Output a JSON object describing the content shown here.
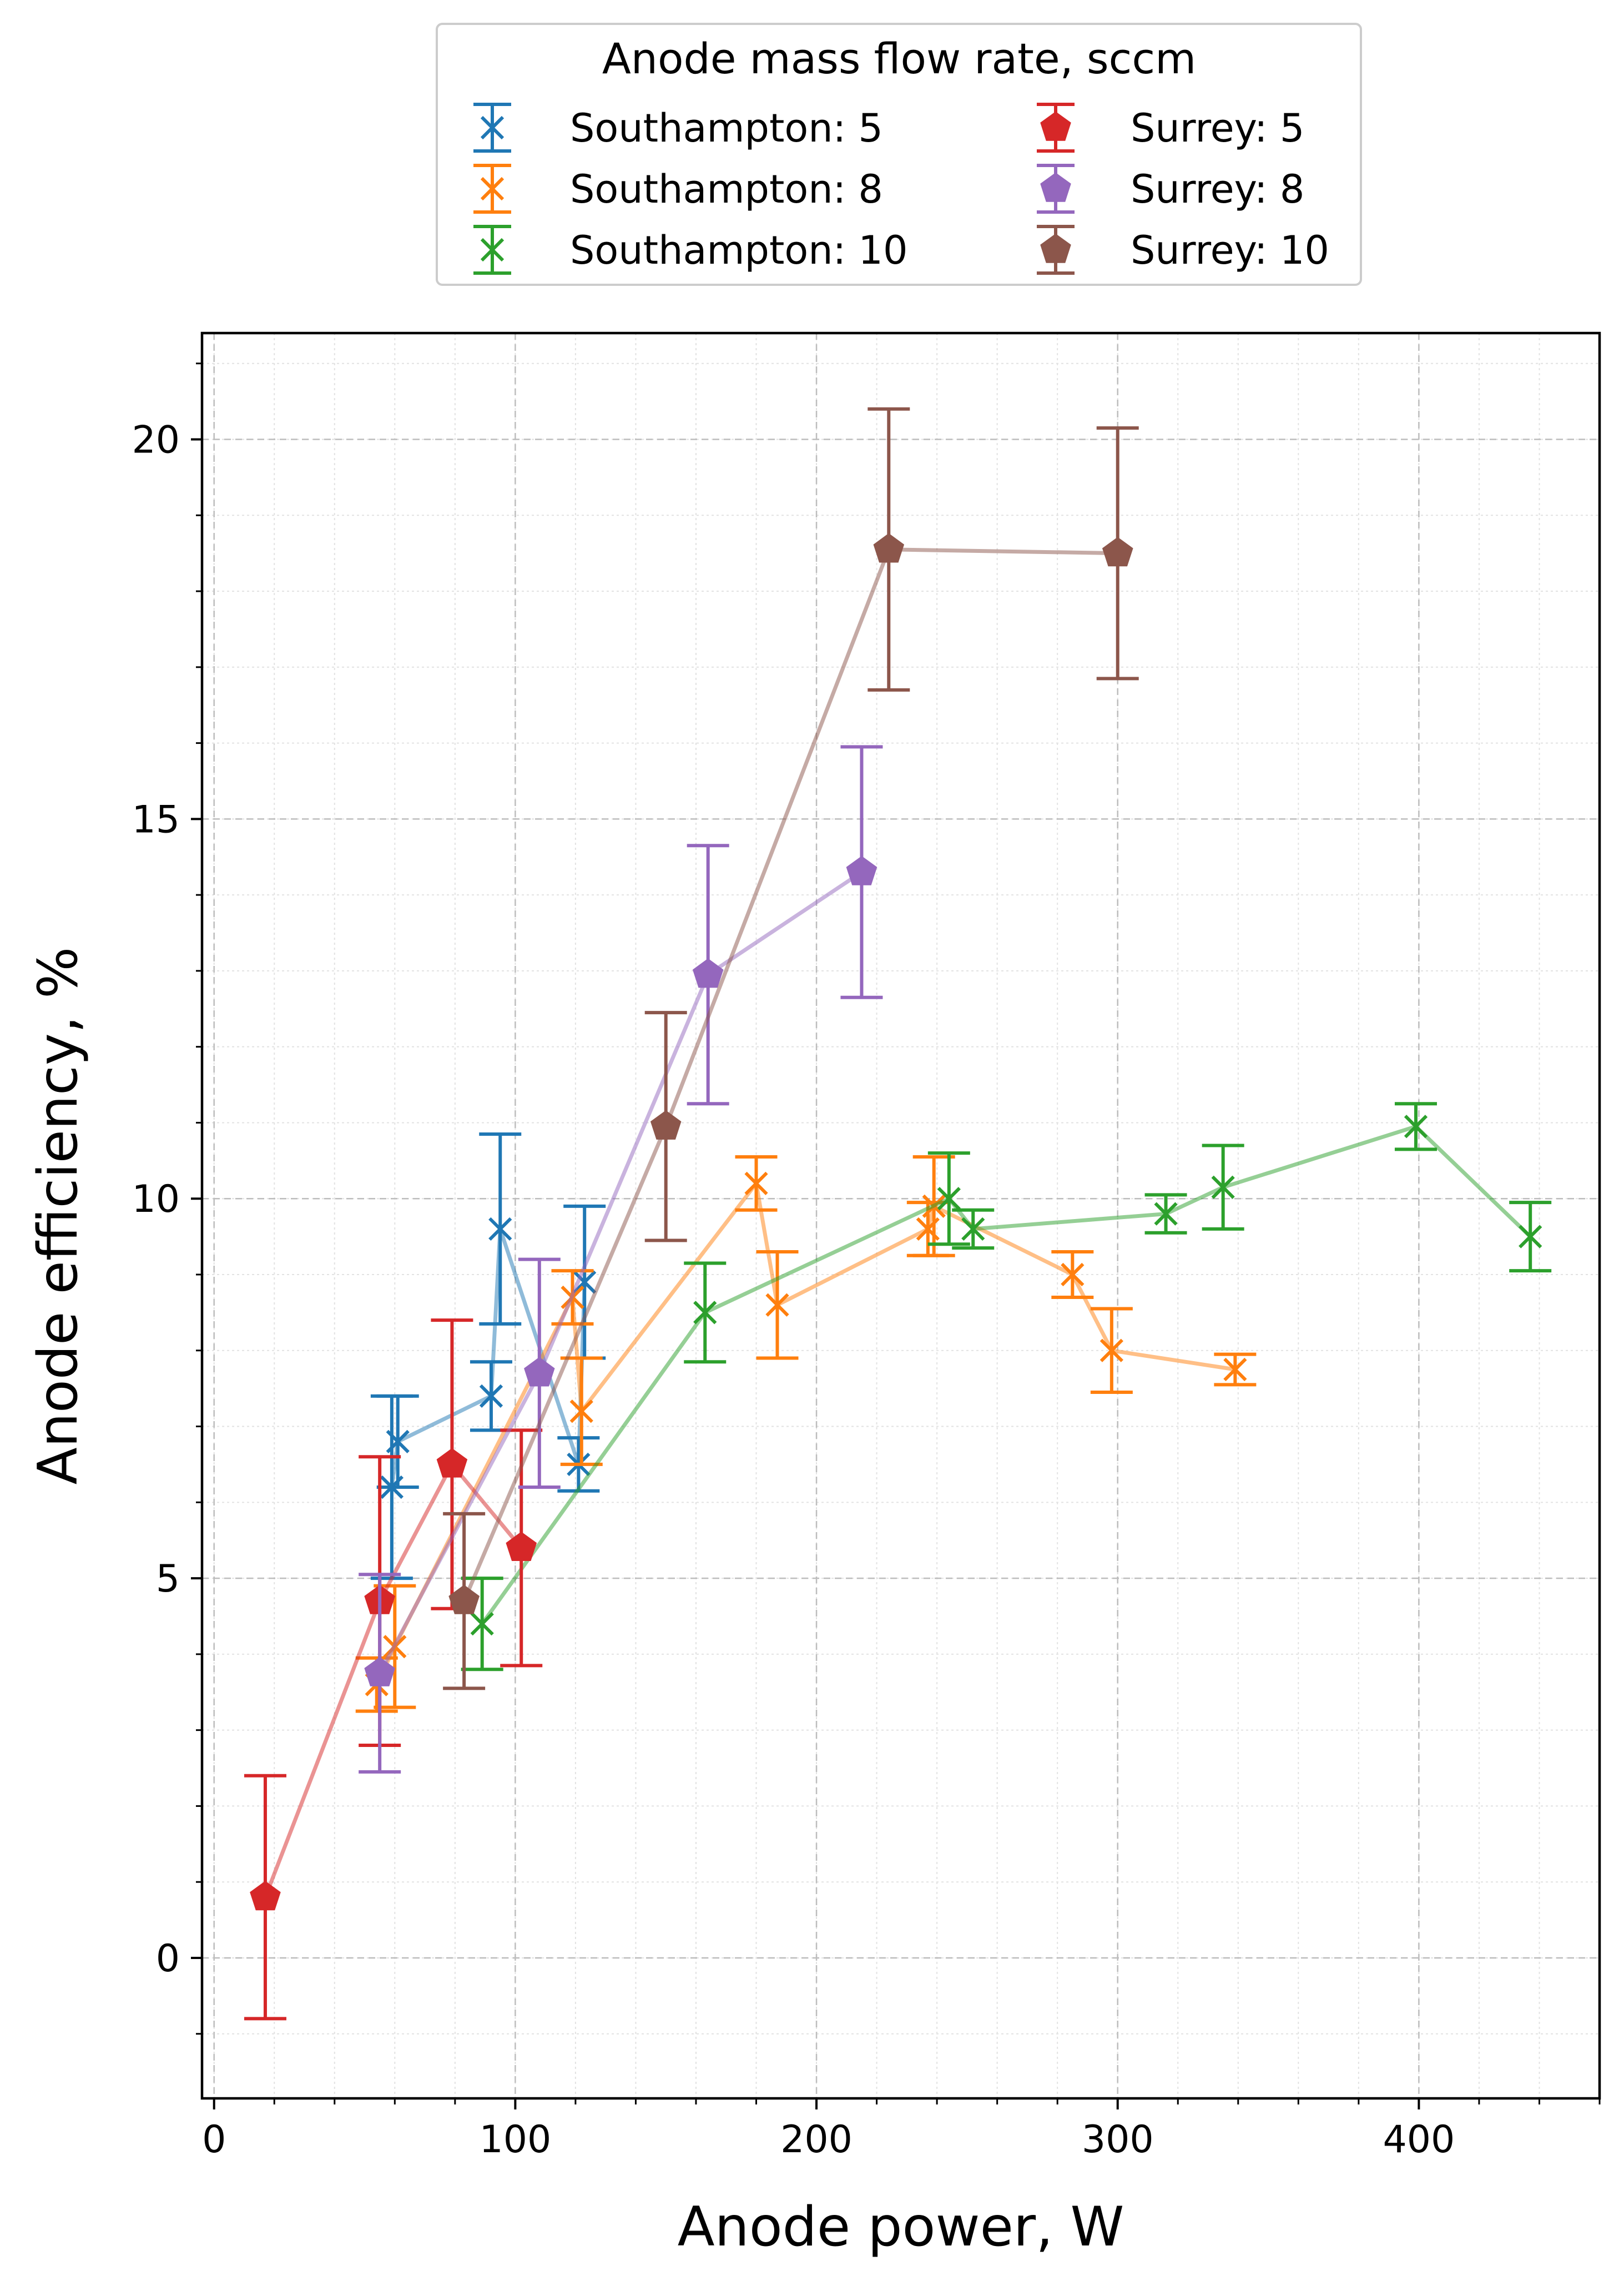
{
  "chart_data": {
    "type": "scatter",
    "xlabel": "Anode power, W",
    "ylabel": "Anode efficiency, %",
    "xlim": [
      -4,
      460
    ],
    "ylim": [
      -1.85,
      21.4
    ],
    "xticks": [
      0,
      100,
      200,
      300,
      400
    ],
    "yticks": [
      0,
      5,
      10,
      15,
      20
    ],
    "grid": true,
    "minor_grid": true,
    "legend": {
      "title": "Anode mass flow rate, sccm",
      "placement": "top-center-outside",
      "columns": 2
    },
    "series": [
      {
        "name": "Southampton: 5",
        "color": "#1f77b4",
        "marker": "x",
        "points": [
          {
            "x": 59,
            "y": 6.2,
            "err": 1.2
          },
          {
            "x": 61,
            "y": 6.8,
            "err": 0.6
          },
          {
            "x": 92,
            "y": 7.4,
            "err": 0.45
          },
          {
            "x": 95,
            "y": 9.6,
            "err": 1.25
          },
          {
            "x": 121,
            "y": 6.5,
            "err": 0.35
          },
          {
            "x": 123,
            "y": 8.9,
            "err": 1.0
          }
        ]
      },
      {
        "name": "Southampton: 8",
        "color": "#ff7f0e",
        "marker": "x",
        "points": [
          {
            "x": 54,
            "y": 3.6,
            "err": 0.35
          },
          {
            "x": 60,
            "y": 4.1,
            "err": 0.8
          },
          {
            "x": 119,
            "y": 8.7,
            "err": 0.35
          },
          {
            "x": 122,
            "y": 7.2,
            "err": 0.7
          },
          {
            "x": 180,
            "y": 10.2,
            "err": 0.35
          },
          {
            "x": 187,
            "y": 8.6,
            "err": 0.7
          },
          {
            "x": 237,
            "y": 9.6,
            "err": 0.35
          },
          {
            "x": 239,
            "y": 9.9,
            "err": 0.65
          },
          {
            "x": 285,
            "y": 9.0,
            "err": 0.3
          },
          {
            "x": 298,
            "y": 8.0,
            "err": 0.55
          },
          {
            "x": 339,
            "y": 7.75,
            "err": 0.2
          }
        ]
      },
      {
        "name": "Southampton: 10",
        "color": "#2ca02c",
        "marker": "x",
        "points": [
          {
            "x": 89,
            "y": 4.4,
            "err": 0.6
          },
          {
            "x": 163,
            "y": 8.5,
            "err": 0.65
          },
          {
            "x": 244,
            "y": 10.0,
            "err": 0.6
          },
          {
            "x": 252,
            "y": 9.6,
            "err": 0.25
          },
          {
            "x": 316,
            "y": 9.8,
            "err": 0.25
          },
          {
            "x": 335,
            "y": 10.15,
            "err": 0.55
          },
          {
            "x": 399,
            "y": 10.95,
            "err": 0.3
          },
          {
            "x": 437,
            "y": 9.5,
            "err": 0.45
          }
        ]
      },
      {
        "name": "Surrey: 5",
        "color": "#d62728",
        "marker": "pentagon",
        "points": [
          {
            "x": 17,
            "y": 0.8,
            "err": 1.6
          },
          {
            "x": 55,
            "y": 4.7,
            "err": 1.9
          },
          {
            "x": 79,
            "y": 6.5,
            "err": 1.9
          },
          {
            "x": 102,
            "y": 5.4,
            "err": 1.55
          }
        ]
      },
      {
        "name": "Surrey: 8",
        "color": "#9467bd",
        "marker": "pentagon",
        "points": [
          {
            "x": 55,
            "y": 3.75,
            "err": 1.3
          },
          {
            "x": 108,
            "y": 7.7,
            "err": 1.5
          },
          {
            "x": 164,
            "y": 12.95,
            "err": 1.7
          },
          {
            "x": 215,
            "y": 14.3,
            "err": 1.65
          }
        ]
      },
      {
        "name": "Surrey: 10",
        "color": "#8c564b",
        "marker": "pentagon",
        "points": [
          {
            "x": 83,
            "y": 4.7,
            "err": 1.15
          },
          {
            "x": 150,
            "y": 10.95,
            "err": 1.5
          },
          {
            "x": 224,
            "y": 18.55,
            "err": 1.85
          },
          {
            "x": 300,
            "y": 18.5,
            "err": 1.65
          }
        ]
      }
    ]
  }
}
